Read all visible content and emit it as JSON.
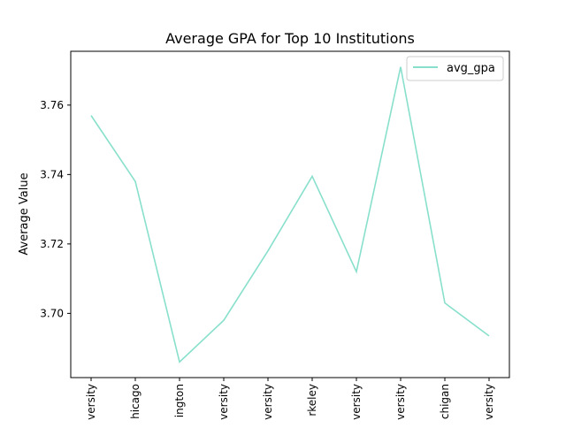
{
  "chart_data": {
    "type": "line",
    "title": "Average GPA for Top 10 Institutions",
    "xlabel": "",
    "ylabel": "Average Value",
    "categories": [
      "versity",
      "hicago",
      "ington",
      "versity",
      "versity",
      "rkeley",
      "versity",
      "versity",
      "chigan",
      "versity"
    ],
    "series": [
      {
        "name": "avg_gpa",
        "color": "#88e0cc",
        "values": [
          3.757,
          3.738,
          3.686,
          3.698,
          3.718,
          3.7395,
          3.712,
          3.771,
          3.703,
          3.6935
        ]
      }
    ],
    "ylim": [
      3.6815,
      3.7755
    ],
    "yticks": [
      "3.70",
      "3.72",
      "3.74",
      "3.76"
    ],
    "ytick_values": [
      3.7,
      3.72,
      3.74,
      3.76
    ],
    "grid": false,
    "legend_position": "upper-right"
  }
}
